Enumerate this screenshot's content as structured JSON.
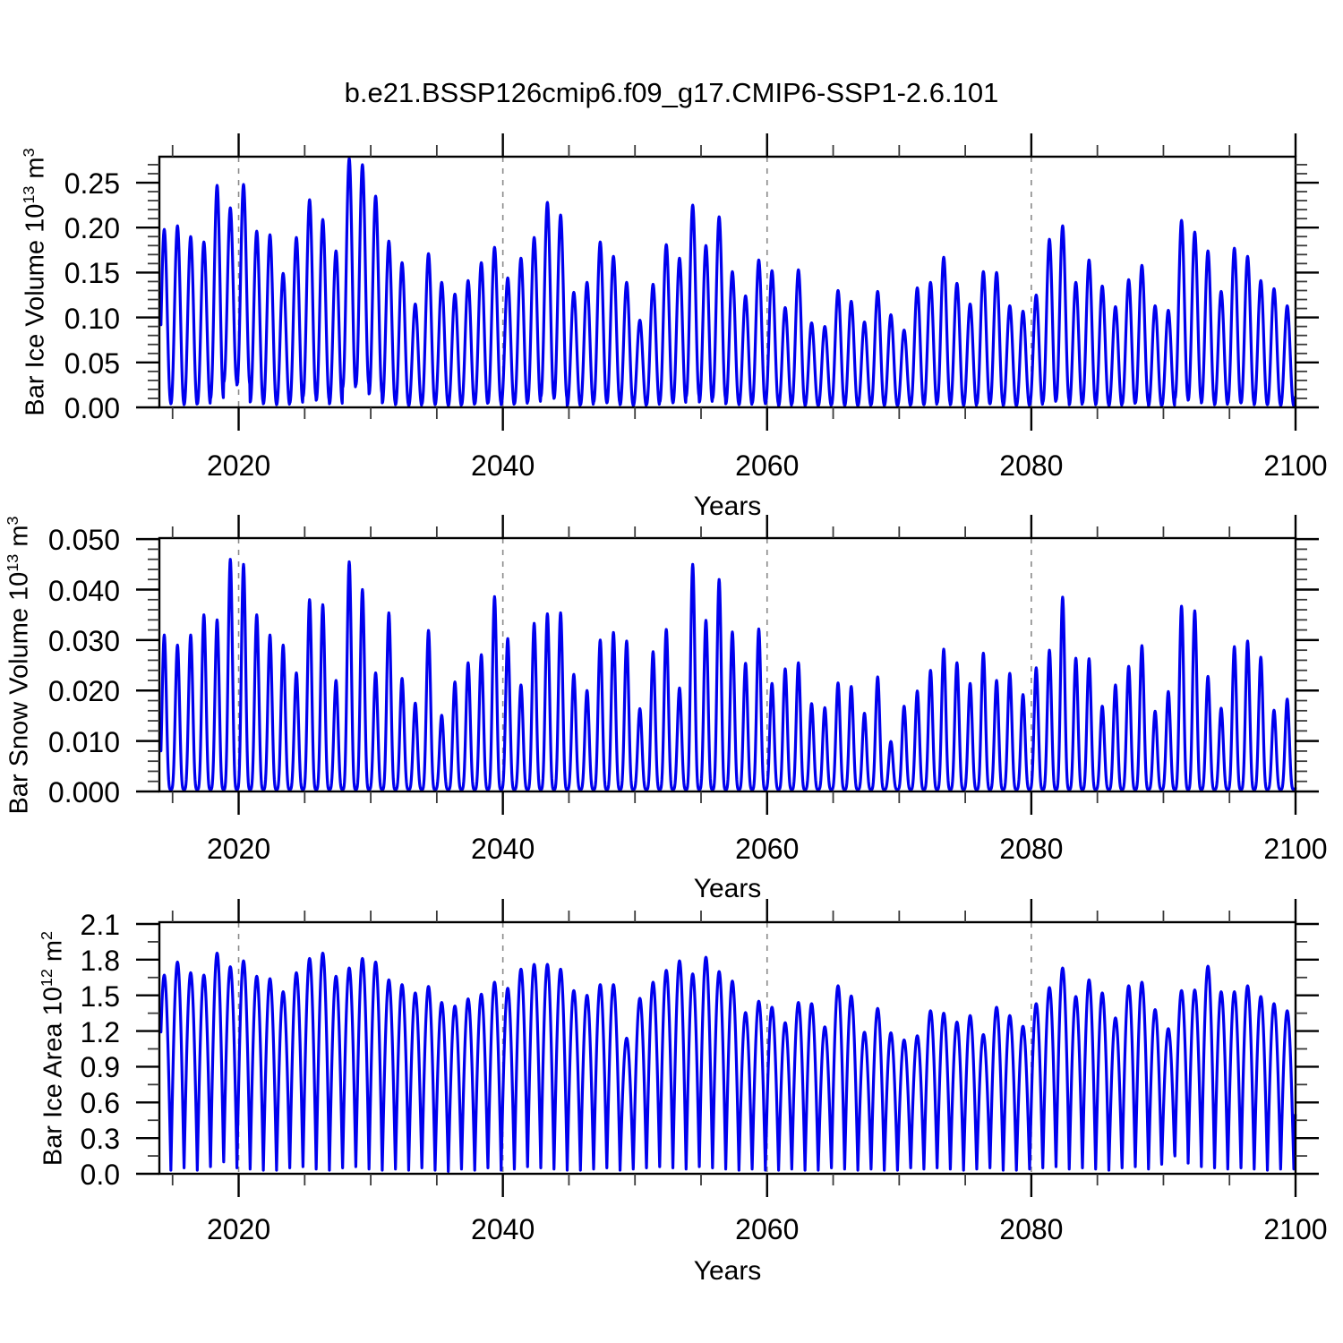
{
  "title": "b.e21.BSSP126cmip6.f09_g17.CMIP6-SSP1-2.6.101",
  "style": {
    "line_color": "#0000ee",
    "grid_color": "#8a8a8a",
    "frame_color": "#000000",
    "minor_tick_color": "#3a3a3a",
    "background": "#ffffff"
  },
  "chart_data": [
    {
      "type": "line",
      "name": "bar-ice-volume",
      "ylabel": "Bar Ice Volume 10^{13} m^{3}",
      "xlabel": "Years",
      "xlim": [
        2014,
        2100
      ],
      "ylim": [
        0,
        0.2789
      ],
      "x_ticks": [
        2020,
        2040,
        2060,
        2080,
        2100
      ],
      "x_tick_labels": [
        "2020",
        "2040",
        "2060",
        "2080",
        "2100"
      ],
      "x_minor_step": 5,
      "y_ticks": [
        0.0,
        0.05,
        0.1,
        0.15,
        0.2,
        0.25
      ],
      "y_tick_labels": [
        "0.00",
        "0.05",
        "0.10",
        "0.15",
        "0.20",
        "0.25"
      ],
      "y_minor_step": 0.01,
      "grid_x": [
        2020,
        2040,
        2060,
        2080
      ],
      "grid_on": true,
      "legend": "none",
      "series": {
        "start_year": 2014,
        "peak_month_frac": 0.37,
        "shape_power": 1.15,
        "annual_max": [
          0.198,
          0.202,
          0.19,
          0.184,
          0.247,
          0.222,
          0.248,
          0.196,
          0.192,
          0.149,
          0.189,
          0.231,
          0.209,
          0.174,
          0.277,
          0.27,
          0.235,
          0.185,
          0.161,
          0.115,
          0.171,
          0.139,
          0.126,
          0.141,
          0.161,
          0.178,
          0.144,
          0.166,
          0.189,
          0.228,
          0.214,
          0.128,
          0.139,
          0.184,
          0.168,
          0.139,
          0.097,
          0.137,
          0.181,
          0.166,
          0.225,
          0.18,
          0.212,
          0.151,
          0.124,
          0.164,
          0.152,
          0.111,
          0.153,
          0.094,
          0.09,
          0.13,
          0.118,
          0.095,
          0.129,
          0.103,
          0.086,
          0.133,
          0.139,
          0.167,
          0.138,
          0.115,
          0.151,
          0.15,
          0.113,
          0.107,
          0.125,
          0.187,
          0.202,
          0.139,
          0.164,
          0.135,
          0.112,
          0.142,
          0.158,
          0.113,
          0.108,
          0.208,
          0.195,
          0.174,
          0.129,
          0.177,
          0.168,
          0.141,
          0.132,
          0.113
        ],
        "annual_min": [
          0.005,
          0.004,
          0.003,
          0.004,
          0.01,
          0.028,
          0.025,
          0.006,
          0.004,
          0.003,
          0.005,
          0.012,
          0.008,
          0.004,
          0.022,
          0.025,
          0.015,
          0.005,
          0.003,
          0.002,
          0.004,
          0.003,
          0.002,
          0.003,
          0.004,
          0.005,
          0.003,
          0.004,
          0.006,
          0.012,
          0.01,
          0.002,
          0.003,
          0.006,
          0.005,
          0.003,
          0.002,
          0.003,
          0.006,
          0.005,
          0.012,
          0.006,
          0.01,
          0.004,
          0.003,
          0.005,
          0.004,
          0.002,
          0.004,
          0.002,
          0.002,
          0.003,
          0.002,
          0.002,
          0.003,
          0.002,
          0.002,
          0.003,
          0.003,
          0.005,
          0.003,
          0.002,
          0.004,
          0.004,
          0.002,
          0.002,
          0.003,
          0.006,
          0.008,
          0.003,
          0.005,
          0.003,
          0.002,
          0.004,
          0.005,
          0.002,
          0.002,
          0.01,
          0.008,
          0.005,
          0.003,
          0.005,
          0.005,
          0.003,
          0.003,
          0.002
        ]
      }
    },
    {
      "type": "line",
      "name": "bar-snow-volume",
      "ylabel": "Bar Snow Volume 10^{13} m^{3}",
      "xlabel": "Years",
      "xlim": [
        2014,
        2100
      ],
      "ylim": [
        0,
        0.0502
      ],
      "x_ticks": [
        2020,
        2040,
        2060,
        2080,
        2100
      ],
      "x_tick_labels": [
        "2020",
        "2040",
        "2060",
        "2080",
        "2100"
      ],
      "x_minor_step": 5,
      "y_ticks": [
        0.0,
        0.01,
        0.02,
        0.03,
        0.04,
        0.05
      ],
      "y_tick_labels": [
        "0.000",
        "0.010",
        "0.020",
        "0.030",
        "0.040",
        "0.050"
      ],
      "y_minor_step": 0.002,
      "grid_x": [
        2020,
        2040,
        2060,
        2080
      ],
      "grid_on": true,
      "legend": "none",
      "series": {
        "start_year": 2014,
        "peak_month_frac": 0.37,
        "shape_power": 2.0,
        "annual_max": [
          0.031,
          0.029,
          0.031,
          0.035,
          0.034,
          0.046,
          0.045,
          0.035,
          0.031,
          0.029,
          0.0235,
          0.038,
          0.037,
          0.022,
          0.0455,
          0.04,
          0.0235,
          0.0354,
          0.0224,
          0.0175,
          0.0319,
          0.0151,
          0.0217,
          0.0255,
          0.0271,
          0.0386,
          0.0303,
          0.0211,
          0.0333,
          0.0352,
          0.0354,
          0.0232,
          0.02,
          0.03,
          0.0315,
          0.0298,
          0.0164,
          0.0277,
          0.0321,
          0.0205,
          0.045,
          0.0339,
          0.042,
          0.0316,
          0.0254,
          0.0322,
          0.0214,
          0.0243,
          0.0255,
          0.0174,
          0.0166,
          0.0215,
          0.0208,
          0.0155,
          0.0227,
          0.0099,
          0.0169,
          0.0199,
          0.024,
          0.0282,
          0.0255,
          0.0214,
          0.0274,
          0.022,
          0.0234,
          0.0192,
          0.0245,
          0.028,
          0.0385,
          0.0264,
          0.0263,
          0.0169,
          0.0211,
          0.0248,
          0.0289,
          0.0159,
          0.0198,
          0.0367,
          0.0358,
          0.0228,
          0.0165,
          0.0287,
          0.0298,
          0.0266,
          0.0161,
          0.0183
        ],
        "annual_min": 0.0004
      }
    },
    {
      "type": "line",
      "name": "bar-ice-area",
      "ylabel": "Bar Ice Area 10^{12} m^{2}",
      "xlabel": "Years",
      "xlim": [
        2014,
        2100
      ],
      "ylim": [
        0,
        2.115
      ],
      "x_ticks": [
        2020,
        2040,
        2060,
        2080,
        2100
      ],
      "x_tick_labels": [
        "2020",
        "2040",
        "2060",
        "2080",
        "2100"
      ],
      "x_minor_step": 5,
      "y_ticks": [
        0.0,
        0.3,
        0.6,
        0.9,
        1.2,
        1.5,
        1.8,
        2.1
      ],
      "y_tick_labels": [
        "0.0",
        "0.3",
        "0.6",
        "0.9",
        "1.2",
        "1.5",
        "1.8",
        "2.1"
      ],
      "y_minor_step": 0.15,
      "grid_x": [
        2020,
        2040,
        2060,
        2080
      ],
      "grid_on": true,
      "legend": "none",
      "series": {
        "start_year": 2014,
        "peak_month_frac": 0.37,
        "shape_power": 0.5,
        "annual_max": [
          1.67,
          1.78,
          1.69,
          1.67,
          1.855,
          1.74,
          1.79,
          1.66,
          1.64,
          1.53,
          1.69,
          1.81,
          1.855,
          1.66,
          1.73,
          1.81,
          1.78,
          1.63,
          1.59,
          1.52,
          1.575,
          1.44,
          1.41,
          1.47,
          1.51,
          1.61,
          1.56,
          1.72,
          1.76,
          1.76,
          1.72,
          1.54,
          1.5,
          1.59,
          1.59,
          1.14,
          1.475,
          1.61,
          1.71,
          1.79,
          1.68,
          1.82,
          1.7,
          1.62,
          1.355,
          1.45,
          1.4,
          1.27,
          1.44,
          1.43,
          1.235,
          1.58,
          1.495,
          1.19,
          1.39,
          1.185,
          1.125,
          1.16,
          1.37,
          1.35,
          1.275,
          1.33,
          1.17,
          1.4,
          1.33,
          1.24,
          1.43,
          1.565,
          1.73,
          1.49,
          1.63,
          1.52,
          1.31,
          1.58,
          1.61,
          1.38,
          1.22,
          1.54,
          1.545,
          1.745,
          1.53,
          1.53,
          1.58,
          1.49,
          1.43,
          1.37
        ],
        "annual_min": [
          0.04,
          0.03,
          0.05,
          0.03,
          0.06,
          0.1,
          0.05,
          0.04,
          0.03,
          0.03,
          0.05,
          0.06,
          0.04,
          0.03,
          0.05,
          0.06,
          0.04,
          0.03,
          0.04,
          0.03,
          0.05,
          0.03,
          0.02,
          0.04,
          0.03,
          0.05,
          0.03,
          0.04,
          0.06,
          0.05,
          0.04,
          0.03,
          0.03,
          0.04,
          0.05,
          0.03,
          0.04,
          0.05,
          0.06,
          0.05,
          0.04,
          0.06,
          0.05,
          0.04,
          0.03,
          0.04,
          0.03,
          0.03,
          0.04,
          0.03,
          0.03,
          0.05,
          0.04,
          0.03,
          0.04,
          0.03,
          0.03,
          0.05,
          0.04,
          0.05,
          0.04,
          0.03,
          0.04,
          0.05,
          0.03,
          0.03,
          0.04,
          0.05,
          0.06,
          0.04,
          0.05,
          0.04,
          0.03,
          0.05,
          0.06,
          0.04,
          0.08,
          0.15,
          0.09,
          0.06,
          0.05,
          0.04,
          0.05,
          0.04,
          0.03,
          0.04
        ]
      }
    }
  ]
}
